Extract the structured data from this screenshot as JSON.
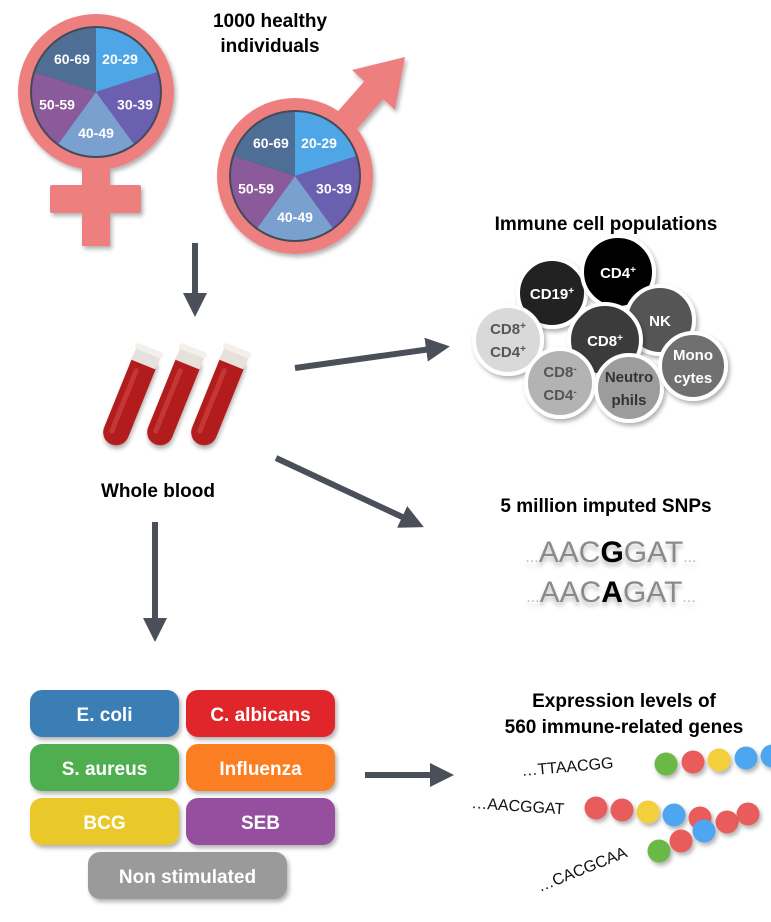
{
  "population": {
    "title_line1": "1000 healthy",
    "title_line2": "individuals",
    "age_groups": [
      "20-29",
      "30-39",
      "40-49",
      "50-59",
      "60-69"
    ],
    "age_colors": [
      "#4fa6e6",
      "#6b5fb0",
      "#7aa0cf",
      "#8a5a9b",
      "#4e6e95"
    ],
    "symbol_color": "#ee7f7f",
    "symbols": [
      "female-symbol",
      "male-symbol"
    ]
  },
  "blood": {
    "label": "Whole blood",
    "tube_color": "#b31b1b"
  },
  "cells": {
    "title": "Immune cell populations",
    "items": [
      {
        "base": "CD19",
        "sup": "+",
        "line2": "",
        "line2sup": "",
        "fill": "#222222",
        "text": "#ffffff"
      },
      {
        "base": "CD4",
        "sup": "+",
        "line2": "",
        "line2sup": "",
        "fill": "#000000",
        "text": "#ffffff"
      },
      {
        "base": "NK",
        "sup": "",
        "line2": "",
        "line2sup": "",
        "fill": "#555555",
        "text": "#ffffff"
      },
      {
        "base": "CD8",
        "sup": "+",
        "line2": "CD4",
        "line2sup": "+",
        "fill": "#d9d9d9",
        "text": "#555555"
      },
      {
        "base": "CD8",
        "sup": "+",
        "line2": "",
        "line2sup": "",
        "fill": "#3b3b3b",
        "text": "#ffffff"
      },
      {
        "base": "CD8",
        "sup": "-",
        "line2": "CD4",
        "line2sup": "-",
        "fill": "#b3b3b3",
        "text": "#555555"
      },
      {
        "base": "Neutro",
        "sup": "",
        "line2": "phils",
        "line2sup": "",
        "fill": "#9c9c9c",
        "text": "#333333"
      },
      {
        "base": "Mono",
        "sup": "",
        "line2": "cytes",
        "line2sup": "",
        "fill": "#707070",
        "text": "#ffffff"
      }
    ]
  },
  "snps": {
    "title": "5 million imputed SNPs",
    "rows": [
      {
        "prefix": "...",
        "left": "AAC",
        "variant": "G",
        "right": "GAT",
        "suffix": "..."
      },
      {
        "prefix": "...",
        "left": "AAC",
        "variant": "A",
        "right": "GAT",
        "suffix": "..."
      }
    ]
  },
  "stimuli": {
    "items": [
      {
        "label": "E. coli",
        "color": "#3a7db5"
      },
      {
        "label": "C. albicans",
        "color": "#e0252b"
      },
      {
        "label": "S. aureus",
        "color": "#4fae4f"
      },
      {
        "label": "Influenza",
        "color": "#fb7f24"
      },
      {
        "label": "BCG",
        "color": "#ebc82a"
      },
      {
        "label": "SEB",
        "color": "#954f9e"
      },
      {
        "label": "Non stimulated",
        "color": "#9a9a9a"
      }
    ]
  },
  "expression": {
    "title_line1": "Expression levels of",
    "title_line2": "560 immune-related genes",
    "rows": [
      {
        "sequence": "…TTAACGG",
        "beads": [
          "#6ab845",
          "#e85b5b",
          "#f3cf3a",
          "#4fa6f0",
          "#4fa6f0"
        ]
      },
      {
        "sequence": "…AACGGAT",
        "beads": [
          "#e85b5b",
          "#e85b5b",
          "#f3cf3a",
          "#4fa6f0",
          "#e85b5b"
        ]
      },
      {
        "sequence": "…CACGCAA",
        "beads": [
          "#6ab845",
          "#e85b5b",
          "#4fa6f0",
          "#e85b5b",
          "#e85b5b"
        ]
      }
    ]
  },
  "arrow_color": "#4a4f5a"
}
